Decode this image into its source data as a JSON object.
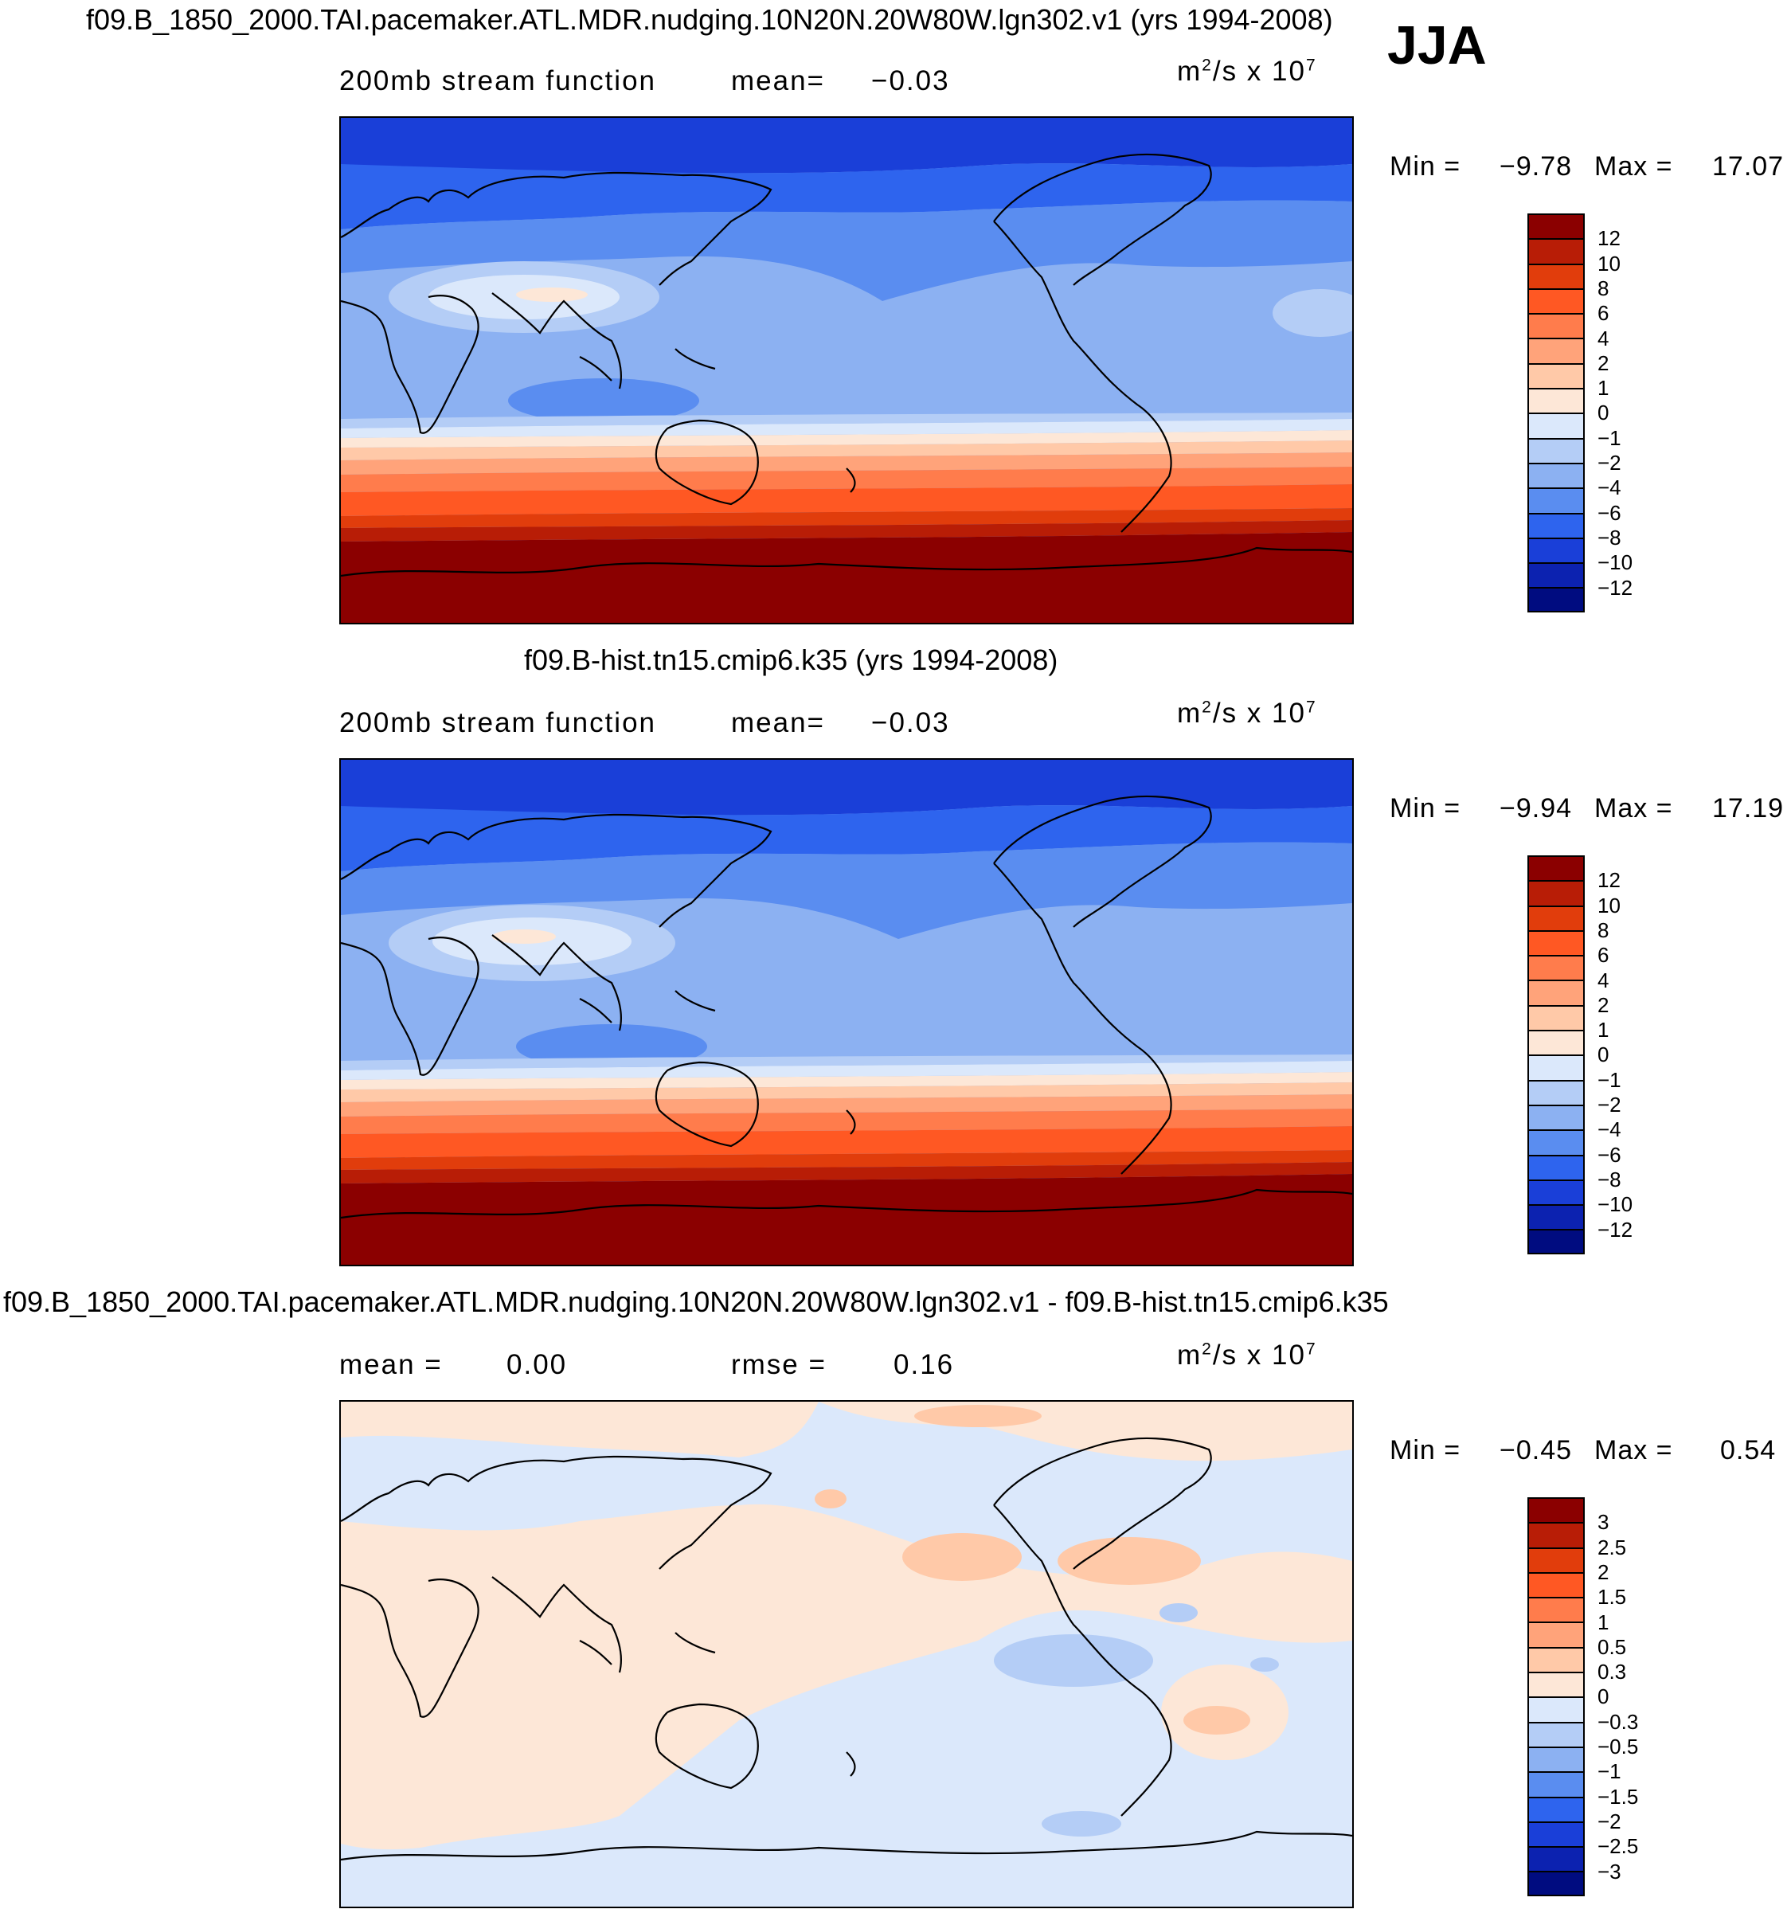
{
  "season": "JJA",
  "panels": [
    {
      "title": "f09.B_1850_2000.TAI.pacemaker.ATL.MDR.nudging.10N20N.20W80W.lgn302.v1 (yrs 1994-2008)",
      "field": "200mb stream function",
      "stat_label": "mean=",
      "stat_value": "−0.03",
      "units_base": "m",
      "units_sup": "2",
      "units_mid": "/s x 10",
      "units_exp": "7",
      "min_label": "Min =",
      "min_value": "−9.78",
      "max_label": "Max =",
      "max_value": "17.07",
      "colorbar": {
        "labels": [
          "12",
          "10",
          "8",
          "6",
          "4",
          "2",
          "1",
          "0",
          "−1",
          "−2",
          "−4",
          "−6",
          "−8",
          "−10",
          "−12"
        ],
        "colors": [
          "#8b0000",
          "#b81d06",
          "#e13d0c",
          "#ff5823",
          "#ff7c4c",
          "#ffa37a",
          "#ffc9a8",
          "#fde7d7",
          "#dbe8fb",
          "#b4cdf6",
          "#8cb1f2",
          "#5a8df0",
          "#2e64ee",
          "#1a3fd8",
          "#0c22b0",
          "#000c80"
        ]
      },
      "legend_note": "m²/s x 10⁷"
    },
    {
      "title": "f09.B-hist.tn15.cmip6.k35 (yrs 1994-2008)",
      "field": "200mb stream function",
      "stat_label": "mean=",
      "stat_value": "−0.03",
      "units_base": "m",
      "units_sup": "2",
      "units_mid": "/s x 10",
      "units_exp": "7",
      "min_label": "Min =",
      "min_value": "−9.94",
      "max_label": "Max =",
      "max_value": "17.19",
      "colorbar": {
        "labels": [
          "12",
          "10",
          "8",
          "6",
          "4",
          "2",
          "1",
          "0",
          "−1",
          "−2",
          "−4",
          "−6",
          "−8",
          "−10",
          "−12"
        ],
        "colors": [
          "#8b0000",
          "#b81d06",
          "#e13d0c",
          "#ff5823",
          "#ff7c4c",
          "#ffa37a",
          "#ffc9a8",
          "#fde7d7",
          "#dbe8fb",
          "#b4cdf6",
          "#8cb1f2",
          "#5a8df0",
          "#2e64ee",
          "#1a3fd8",
          "#0c22b0",
          "#000c80"
        ]
      }
    },
    {
      "title": "f09.B_1850_2000.TAI.pacemaker.ATL.MDR.nudging.10N20N.20W80W.lgn302.v1 - f09.B-hist.tn15.cmip6.k35",
      "mean_label": "mean =",
      "mean_value": "0.00",
      "rmse_label": "rmse =",
      "rmse_value": "0.16",
      "units_base": "m",
      "units_sup": "2",
      "units_mid": "/s x 10",
      "units_exp": "7",
      "min_label": "Min =",
      "min_value": "−0.45",
      "max_label": "Max =",
      "max_value": "0.54",
      "colorbar": {
        "labels": [
          "3",
          "2.5",
          "2",
          "1.5",
          "1",
          "0.5",
          "0.3",
          "0",
          "−0.3",
          "−0.5",
          "−1",
          "−1.5",
          "−2",
          "−2.5",
          "−3"
        ],
        "colors": [
          "#8b0000",
          "#b81d06",
          "#e13d0c",
          "#ff5823",
          "#ff7c4c",
          "#ffa37a",
          "#ffc9a8",
          "#fde7d7",
          "#dbe8fb",
          "#b4cdf6",
          "#8cb1f2",
          "#5a8df0",
          "#2e64ee",
          "#1a3fd8",
          "#0c22b0",
          "#000c80"
        ]
      }
    }
  ],
  "map_colors": {
    "ocean_dark_blue": "#1a3fd8",
    "blue_mid": "#2e64ee",
    "blue_light": "#5a8df0",
    "blue_lighter": "#8cb1f2",
    "blue_pale": "#b4cdf6",
    "blue_palest": "#dbe8fb",
    "cream": "#fde7d7",
    "dark_red": "#8b0000",
    "diff_blue": "#d6e7fb",
    "diff_cream": "#fde8d8"
  }
}
